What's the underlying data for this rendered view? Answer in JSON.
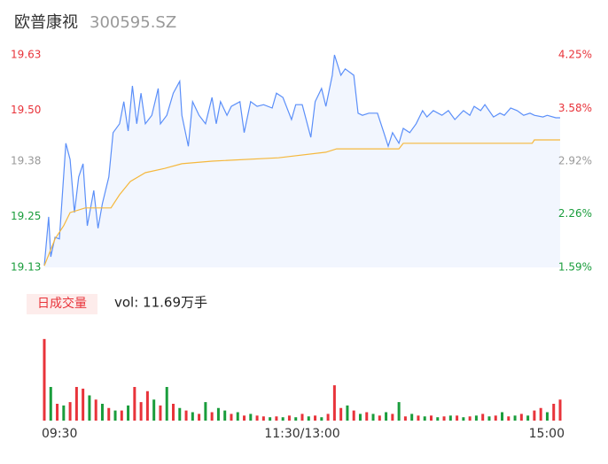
{
  "chart_data": [
    {
      "type": "line",
      "title": "欧普康视",
      "subtitle": "300595.SZ",
      "xlim": [
        0,
        240
      ],
      "ylim": [
        19.13,
        19.63
      ],
      "yticks": [
        19.13,
        19.25,
        19.38,
        {
          "value": 19.5,
          "label": "19.50"
        },
        19.63
      ],
      "y2lim": [
        1.59,
        4.25
      ],
      "y2ticks": [
        {
          "value": 1.59,
          "label": "1.59%"
        },
        {
          "value": 2.26,
          "label": "2.26%"
        },
        {
          "value": 2.92,
          "label": "2.92%"
        },
        {
          "value": 3.58,
          "label": "3.58%"
        },
        {
          "value": 4.25,
          "label": "4.25%"
        }
      ],
      "tick_colors": [
        "#1a9d3c",
        "#1a9d3c",
        "#999999",
        "#e8333a",
        "#e8333a"
      ],
      "series": [
        {
          "color": "#5b8ff9",
          "fill": "#f2f6fe",
          "x": [
            0,
            2,
            3,
            5,
            7,
            10,
            12,
            14,
            16,
            18,
            20,
            23,
            25,
            27,
            30,
            32,
            35,
            37,
            39,
            41,
            43,
            45,
            47,
            50,
            53,
            54,
            57,
            60,
            63,
            64,
            67,
            69,
            72,
            75,
            78,
            80,
            82,
            85,
            87,
            91,
            93,
            96,
            99,
            102,
            106,
            108,
            111,
            115,
            117,
            120,
            124,
            126,
            129,
            131,
            134,
            135,
            138,
            140,
            144,
            146,
            148,
            151,
            155,
            158,
            160,
            162,
            165,
            167,
            170,
            173,
            176,
            178,
            181,
            185,
            188,
            191,
            195,
            198,
            200,
            203,
            205,
            209,
            212,
            214,
            217,
            220,
            223,
            226,
            228,
            232,
            234,
            238,
            240
          ],
          "values": [
            19.134,
            19.249,
            19.155,
            19.201,
            19.197,
            19.422,
            19.384,
            19.259,
            19.343,
            19.374,
            19.228,
            19.311,
            19.222,
            19.28,
            19.343,
            19.447,
            19.468,
            19.52,
            19.451,
            19.557,
            19.468,
            19.54,
            19.468,
            19.488,
            19.551,
            19.468,
            19.488,
            19.54,
            19.568,
            19.488,
            19.415,
            19.52,
            19.488,
            19.468,
            19.53,
            19.468,
            19.52,
            19.488,
            19.509,
            19.52,
            19.447,
            19.52,
            19.509,
            19.513,
            19.505,
            19.54,
            19.53,
            19.478,
            19.513,
            19.513,
            19.436,
            19.52,
            19.551,
            19.509,
            19.582,
            19.63,
            19.582,
            19.597,
            19.582,
            19.493,
            19.488,
            19.493,
            19.493,
            19.447,
            19.415,
            19.447,
            19.422,
            19.457,
            19.447,
            19.468,
            19.499,
            19.484,
            19.499,
            19.488,
            19.499,
            19.478,
            19.499,
            19.488,
            19.509,
            19.499,
            19.513,
            19.484,
            19.493,
            19.488,
            19.505,
            19.499,
            19.488,
            19.493,
            19.488,
            19.484,
            19.488,
            19.482,
            19.482
          ]
        },
        {
          "color": "#f5b83d",
          "x": [
            0,
            5,
            9,
            12,
            19,
            31,
            35,
            40,
            47,
            56,
            64,
            78,
            109,
            131,
            136,
            165,
            167,
            227,
            228,
            240
          ],
          "values": [
            19.134,
            19.197,
            19.228,
            19.259,
            19.27,
            19.27,
            19.301,
            19.332,
            19.353,
            19.363,
            19.374,
            19.38,
            19.388,
            19.401,
            19.409,
            19.409,
            19.422,
            19.422,
            19.43,
            19.43
          ]
        }
      ]
    },
    {
      "type": "bar",
      "title": "日成交量",
      "annotation": "vol: 11.69万手",
      "xlim": [
        0,
        240
      ],
      "ylim": [
        0,
        100
      ],
      "xticks": [
        {
          "value": 0,
          "label": "09:30"
        },
        {
          "value": 120,
          "label": "11:30/13:00"
        },
        {
          "value": 240,
          "label": "15:00"
        }
      ],
      "x": [
        0,
        3,
        6,
        9,
        12,
        15,
        18,
        21,
        24,
        27,
        30,
        33,
        36,
        39,
        42,
        45,
        48,
        51,
        54,
        57,
        60,
        63,
        66,
        69,
        72,
        75,
        78,
        81,
        84,
        87,
        90,
        93,
        96,
        99,
        102,
        105,
        108,
        111,
        114,
        117,
        120,
        123,
        126,
        129,
        132,
        135,
        138,
        141,
        144,
        147,
        150,
        153,
        156,
        159,
        162,
        165,
        168,
        171,
        174,
        177,
        180,
        183,
        186,
        189,
        192,
        195,
        198,
        201,
        204,
        207,
        210,
        213,
        216,
        219,
        222,
        225,
        228,
        231,
        234,
        237,
        240
      ],
      "values": [
        97,
        40,
        20,
        18,
        22,
        40,
        38,
        30,
        25,
        20,
        15,
        12,
        12,
        18,
        40,
        22,
        35,
        25,
        18,
        40,
        20,
        15,
        12,
        10,
        8,
        22,
        10,
        15,
        12,
        8,
        10,
        6,
        8,
        6,
        5,
        4,
        5,
        4,
        6,
        4,
        8,
        5,
        6,
        4,
        8,
        42,
        15,
        18,
        12,
        8,
        10,
        8,
        6,
        10,
        8,
        22,
        5,
        8,
        6,
        5,
        6,
        4,
        5,
        6,
        6,
        4,
        5,
        6,
        8,
        5,
        6,
        10,
        5,
        6,
        8,
        6,
        12,
        15,
        10,
        20,
        25
      ],
      "colors": [
        "#e8333a",
        "#1a9d3c",
        "#e8333a",
        "#1a9d3c",
        "#e8333a",
        "#e8333a",
        "#e8333a",
        "#1a9d3c",
        "#e8333a",
        "#1a9d3c",
        "#e8333a",
        "#1a9d3c",
        "#e8333a",
        "#1a9d3c",
        "#e8333a",
        "#e8333a",
        "#e8333a",
        "#1a9d3c",
        "#e8333a",
        "#1a9d3c",
        "#e8333a",
        "#1a9d3c",
        "#e8333a",
        "#1a9d3c",
        "#e8333a",
        "#1a9d3c",
        "#e8333a",
        "#1a9d3c",
        "#1a9d3c",
        "#e8333a",
        "#1a9d3c",
        "#e8333a",
        "#1a9d3c",
        "#e8333a",
        "#e8333a",
        "#1a9d3c",
        "#e8333a",
        "#1a9d3c",
        "#e8333a",
        "#1a9d3c",
        "#e8333a",
        "#1a9d3c",
        "#e8333a",
        "#1a9d3c",
        "#e8333a",
        "#e8333a",
        "#e8333a",
        "#1a9d3c",
        "#e8333a",
        "#1a9d3c",
        "#e8333a",
        "#1a9d3c",
        "#e8333a",
        "#1a9d3c",
        "#e8333a",
        "#1a9d3c",
        "#e8333a",
        "#1a9d3c",
        "#e8333a",
        "#1a9d3c",
        "#e8333a",
        "#1a9d3c",
        "#e8333a",
        "#1a9d3c",
        "#e8333a",
        "#1a9d3c",
        "#e8333a",
        "#1a9d3c",
        "#e8333a",
        "#1a9d3c",
        "#e8333a",
        "#1a9d3c",
        "#e8333a",
        "#1a9d3c",
        "#e8333a",
        "#1a9d3c",
        "#e8333a",
        "#e8333a",
        "#1a9d3c",
        "#e8333a",
        "#e8333a"
      ]
    }
  ]
}
